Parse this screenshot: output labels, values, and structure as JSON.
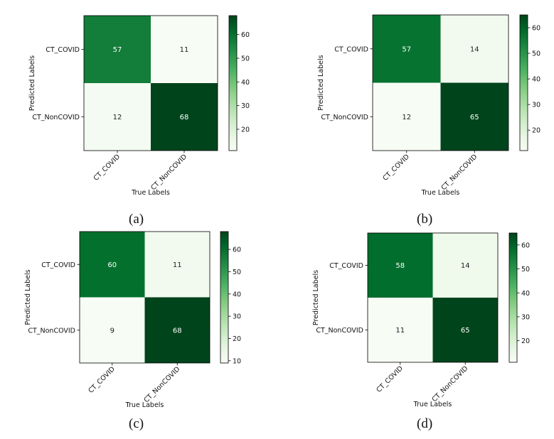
{
  "chart_data": [
    {
      "type": "heatmap",
      "panel_label": "(a)",
      "x_categories": [
        "CT_COVID",
        "CT_NonCOVID"
      ],
      "y_categories": [
        "CT_COVID",
        "CT_NonCOVID"
      ],
      "values": [
        [
          57,
          11
        ],
        [
          12,
          68
        ]
      ],
      "xlabel": "True Labels",
      "ylabel": "Predicted Labels",
      "colorbar": {
        "min": 11,
        "max": 68,
        "ticks": [
          20,
          30,
          40,
          50,
          60
        ]
      },
      "colormap": "Greens"
    },
    {
      "type": "heatmap",
      "panel_label": "(b)",
      "x_categories": [
        "CT_COVID",
        "CT_NonCOVID"
      ],
      "y_categories": [
        "CT_COVID",
        "CT_NonCOVID"
      ],
      "values": [
        [
          57,
          14
        ],
        [
          12,
          65
        ]
      ],
      "xlabel": "True Labels",
      "ylabel": "Predicted Labels",
      "colorbar": {
        "min": 12,
        "max": 65,
        "ticks": [
          20,
          30,
          40,
          50,
          60
        ]
      },
      "colormap": "Greens"
    },
    {
      "type": "heatmap",
      "panel_label": "(c)",
      "x_categories": [
        "CT_COVID",
        "CT_NonCOVID"
      ],
      "y_categories": [
        "CT_COVID",
        "CT_NonCOVID"
      ],
      "values": [
        [
          60,
          11
        ],
        [
          9,
          68
        ]
      ],
      "xlabel": "True Labels",
      "ylabel": "Predicted Labels",
      "colorbar": {
        "min": 9,
        "max": 68,
        "ticks": [
          10,
          20,
          30,
          40,
          50,
          60
        ]
      },
      "colormap": "Greens"
    },
    {
      "type": "heatmap",
      "panel_label": "(d)",
      "x_categories": [
        "CT_COVID",
        "CT_NonCOVID"
      ],
      "y_categories": [
        "CT_COVID",
        "CT_NonCOVID"
      ],
      "values": [
        [
          58,
          14
        ],
        [
          11,
          65
        ]
      ],
      "xlabel": "True Labels",
      "ylabel": "Predicted Labels",
      "colorbar": {
        "min": 11,
        "max": 65,
        "ticks": [
          20,
          30,
          40,
          50,
          60
        ]
      },
      "colormap": "Greens"
    }
  ]
}
